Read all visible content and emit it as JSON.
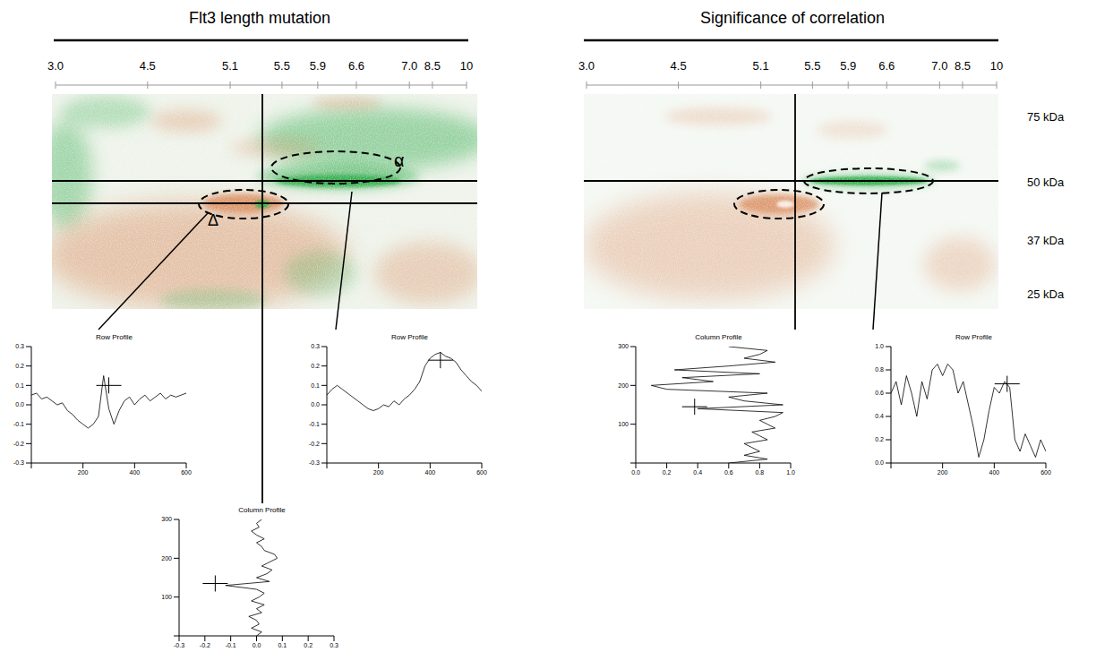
{
  "panels": [
    {
      "title": "Flt3 length mutation",
      "regions": [
        "α",
        "Δ"
      ]
    },
    {
      "title": "Significance of correlation"
    }
  ],
  "pI_ticks": [
    {
      "value": 3,
      "label": "3.0"
    },
    4.5,
    5.1,
    5.5,
    5.9,
    6.6,
    {
      "value": 7,
      "label": "7.0"
    },
    8.5,
    10
  ],
  "mw_labels": [
    "75 kDa",
    "50 kDa",
    "37 kDa",
    "25 kDa"
  ],
  "heatmap_colors": [
    "#2eaa4a",
    "#d9895a"
  ],
  "chart_data": [
    {
      "type": "line",
      "title": "Row Profile",
      "x": [
        0,
        20,
        40,
        60,
        80,
        100,
        120,
        140,
        160,
        180,
        200,
        220,
        240,
        260,
        280,
        300,
        320,
        340,
        360,
        380,
        400,
        420,
        440,
        460,
        480,
        500,
        520,
        540,
        560,
        580,
        600
      ],
      "values": [
        0.05,
        0.06,
        0.03,
        0.04,
        0.02,
        0.0,
        0.01,
        -0.03,
        -0.05,
        -0.08,
        -0.1,
        -0.12,
        -0.1,
        -0.06,
        0.15,
        -0.02,
        -0.1,
        -0.03,
        0.02,
        0.04,
        0.0,
        0.03,
        0.05,
        0.02,
        0.04,
        0.06,
        0.03,
        0.05,
        0.04,
        0.05,
        0.06
      ],
      "xlim": [
        0,
        600
      ],
      "xticks": [
        0,
        200,
        400,
        600
      ],
      "ylim": [
        -0.3,
        0.3
      ],
      "yticks": [
        -0.3,
        -0.2,
        -0.1,
        {
          "value": 0,
          "label": "0.0"
        },
        0.1,
        0.2,
        0.3
      ],
      "marker": "cross",
      "cursor": {
        "x": 300,
        "y": 0.1
      },
      "color": "#000000"
    },
    {
      "type": "line",
      "title": "Row Profile",
      "x": [
        0,
        20,
        40,
        60,
        80,
        100,
        120,
        140,
        160,
        180,
        200,
        220,
        240,
        260,
        280,
        300,
        320,
        340,
        360,
        380,
        400,
        420,
        440,
        460,
        480,
        500,
        520,
        540,
        560,
        580,
        600
      ],
      "values": [
        0.05,
        0.08,
        0.1,
        0.08,
        0.06,
        0.04,
        0.02,
        0.0,
        -0.02,
        -0.03,
        -0.02,
        0.0,
        -0.01,
        0.02,
        0.0,
        0.03,
        0.05,
        0.08,
        0.12,
        0.2,
        0.24,
        0.26,
        0.27,
        0.25,
        0.24,
        0.22,
        0.18,
        0.15,
        0.12,
        0.1,
        0.07
      ],
      "xlim": [
        0,
        600
      ],
      "xticks": [
        0,
        200,
        400,
        600
      ],
      "ylim": [
        -0.3,
        0.3
      ],
      "yticks": [
        -0.3,
        -0.2,
        -0.1,
        {
          "value": 0,
          "label": "0.0"
        },
        0.1,
        0.2,
        0.3
      ],
      "marker": "cross",
      "cursor": {
        "x": 440,
        "y": 0.23
      },
      "color": "#000000"
    },
    {
      "type": "line",
      "title": "Column Profile",
      "orientation": "horizontal",
      "y": [
        0,
        10,
        20,
        30,
        40,
        50,
        60,
        70,
        80,
        90,
        100,
        110,
        120,
        130,
        140,
        150,
        160,
        170,
        180,
        190,
        200,
        210,
        220,
        230,
        240,
        250,
        260,
        270,
        280,
        290,
        300
      ],
      "values": [
        0.0,
        0.02,
        -0.02,
        0.01,
        0.0,
        -0.03,
        0.02,
        0.0,
        0.03,
        -0.02,
        0.01,
        0.03,
        0.0,
        -0.12,
        0.05,
        0.0,
        0.04,
        0.06,
        0.02,
        0.05,
        0.08,
        0.07,
        0.03,
        0.02,
        0.0,
        0.03,
        0.0,
        -0.02,
        0.01,
        0.0,
        0.02
      ],
      "xlim": [
        -0.3,
        0.3
      ],
      "xticks": [
        -0.3,
        -0.2,
        -0.1,
        {
          "value": 0,
          "label": "0.0"
        },
        0.1,
        0.2,
        0.3
      ],
      "ylim": [
        0,
        300
      ],
      "yticks": [
        0,
        100,
        200,
        300
      ],
      "marker": "cross",
      "cursor": {
        "x": -0.16,
        "y": 135
      },
      "color": "#000000"
    },
    {
      "type": "line",
      "title": "Column Profile",
      "orientation": "horizontal",
      "y": [
        0,
        10,
        20,
        30,
        40,
        50,
        60,
        70,
        80,
        90,
        100,
        110,
        120,
        130,
        140,
        150,
        160,
        170,
        180,
        190,
        200,
        210,
        220,
        230,
        240,
        250,
        260,
        270,
        280,
        290,
        300
      ],
      "values": [
        0.6,
        0.85,
        0.7,
        0.8,
        0.75,
        0.7,
        0.85,
        0.8,
        0.75,
        0.9,
        0.85,
        0.8,
        0.9,
        0.95,
        0.4,
        0.95,
        0.7,
        0.6,
        0.85,
        0.2,
        0.1,
        0.5,
        0.3,
        0.8,
        0.25,
        0.6,
        0.9,
        0.7,
        0.8,
        0.85,
        0.6
      ],
      "xlim": [
        0,
        1
      ],
      "xticks": [
        {
          "value": 0,
          "label": "0.0"
        },
        0.2,
        0.4,
        0.6,
        0.8,
        {
          "value": 1,
          "label": "1.0"
        }
      ],
      "ylim": [
        0,
        300
      ],
      "yticks": [
        0,
        100,
        200,
        300
      ],
      "marker": "cross",
      "cursor": {
        "x": 0.38,
        "y": 145
      },
      "color": "#000000"
    },
    {
      "type": "line",
      "title": "Row Profile",
      "x": [
        0,
        20,
        40,
        60,
        80,
        100,
        120,
        140,
        160,
        180,
        200,
        220,
        240,
        260,
        280,
        300,
        320,
        340,
        360,
        380,
        400,
        420,
        440,
        460,
        480,
        500,
        520,
        540,
        560,
        580,
        600
      ],
      "values": [
        0.6,
        0.7,
        0.5,
        0.75,
        0.6,
        0.4,
        0.7,
        0.55,
        0.8,
        0.85,
        0.75,
        0.85,
        0.8,
        0.6,
        0.7,
        0.5,
        0.3,
        0.05,
        0.2,
        0.45,
        0.65,
        0.6,
        0.7,
        0.65,
        0.2,
        0.1,
        0.25,
        0.15,
        0.05,
        0.2,
        0.1
      ],
      "xlim": [
        0,
        600
      ],
      "xticks": [
        0,
        200,
        400,
        600
      ],
      "ylim": [
        0,
        1
      ],
      "yticks": [
        {
          "value": 0,
          "label": "0.0"
        },
        0.2,
        0.4,
        0.6,
        0.8,
        {
          "value": 1,
          "label": "1.0"
        }
      ],
      "marker": "cross",
      "cursor": {
        "x": 450,
        "y": 0.68
      },
      "color": "#000000"
    }
  ]
}
